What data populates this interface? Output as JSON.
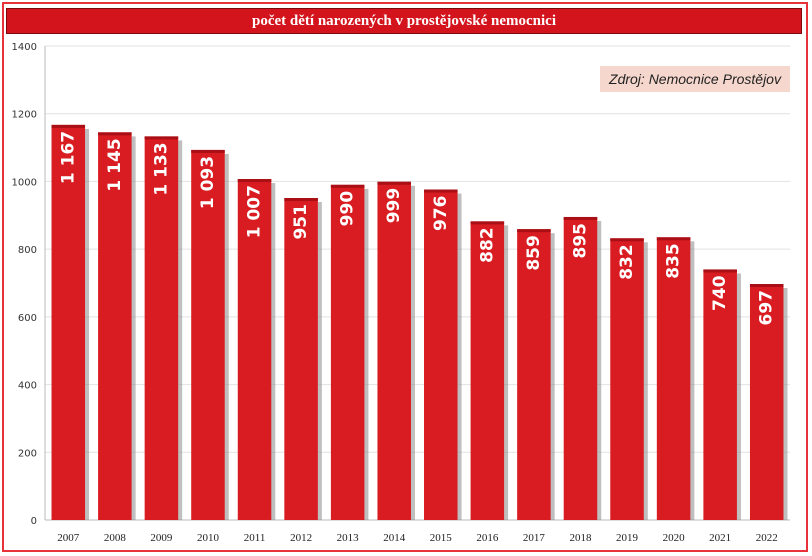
{
  "title": "počet dětí narozených v prostějovské nemocnici",
  "source": "Zdroj: Nemocnice Prostějov",
  "colors": {
    "bar": "#d91c22",
    "bar_shadow": "#8a8a8a",
    "frame": "#e8323a",
    "title_bg": "#d4141c",
    "source_bg": "#f6d7cd"
  },
  "chart_data": {
    "type": "bar",
    "categories": [
      "2007",
      "2008",
      "2009",
      "2010",
      "2011",
      "2012",
      "2013",
      "2014",
      "2015",
      "2016",
      "2017",
      "2018",
      "2019",
      "2020",
      "2021",
      "2022"
    ],
    "values": [
      1167,
      1145,
      1133,
      1093,
      1007,
      951,
      990,
      999,
      976,
      882,
      859,
      895,
      832,
      835,
      740,
      697
    ],
    "value_labels": [
      "1 167",
      "1 145",
      "1 133",
      "1 093",
      "1 007",
      "951",
      "990",
      "999",
      "976",
      "882",
      "859",
      "895",
      "832",
      "835",
      "740",
      "697"
    ],
    "ylim": [
      0,
      1400
    ],
    "yticks": [
      0,
      200,
      400,
      600,
      800,
      1000,
      1200,
      1400
    ],
    "ytick_labels": [
      "0",
      "200",
      "400",
      "600",
      "800",
      "1000",
      "1200",
      "1400"
    ],
    "grid": true,
    "legend": "none"
  }
}
